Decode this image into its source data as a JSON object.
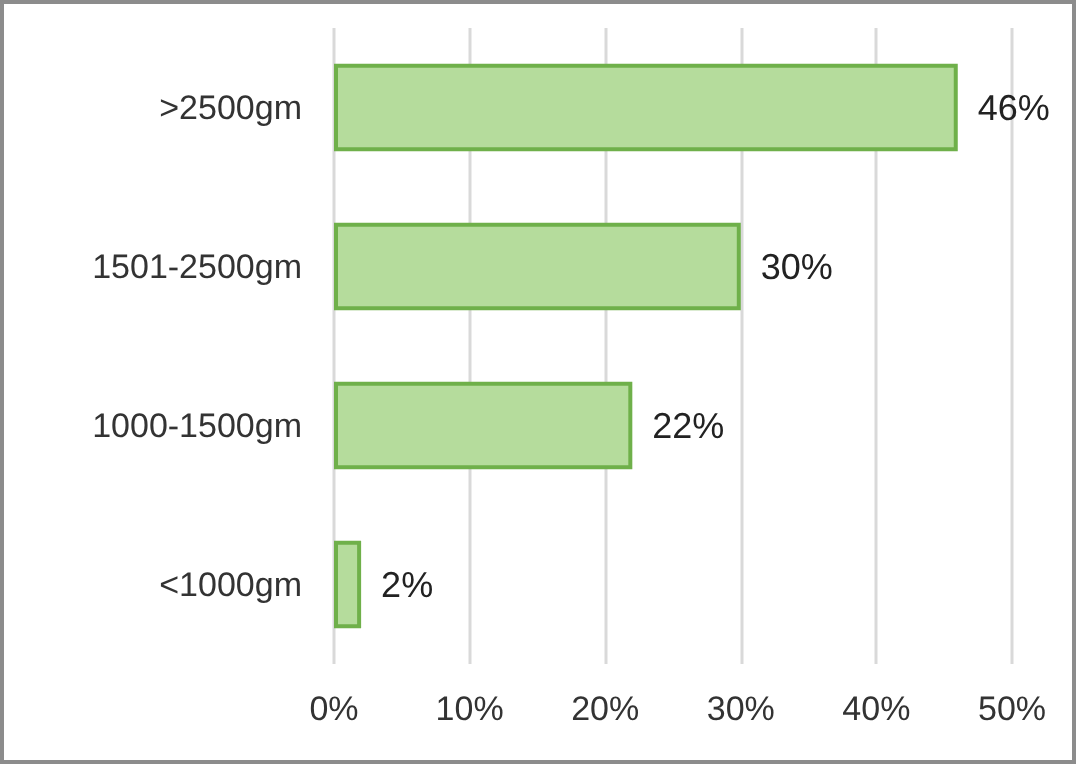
{
  "chart_data": {
    "type": "bar",
    "orientation": "horizontal",
    "categories": [
      ">2500gm",
      "1501-2500gm",
      "1000-1500gm",
      "<1000gm"
    ],
    "values": [
      46,
      30,
      22,
      2
    ],
    "value_labels": [
      "46%",
      "30%",
      "22%",
      "2%"
    ],
    "color": "#b5dc9c",
    "xlim": [
      0,
      50
    ],
    "xticks": [
      {
        "value": 0,
        "label": "0%"
      },
      {
        "value": 10,
        "label": "10%"
      },
      {
        "value": 20,
        "label": "20%"
      },
      {
        "value": 30,
        "label": "30%"
      },
      {
        "value": 40,
        "label": "40%"
      },
      {
        "value": 50,
        "label": "50%"
      }
    ],
    "grid": "x"
  }
}
